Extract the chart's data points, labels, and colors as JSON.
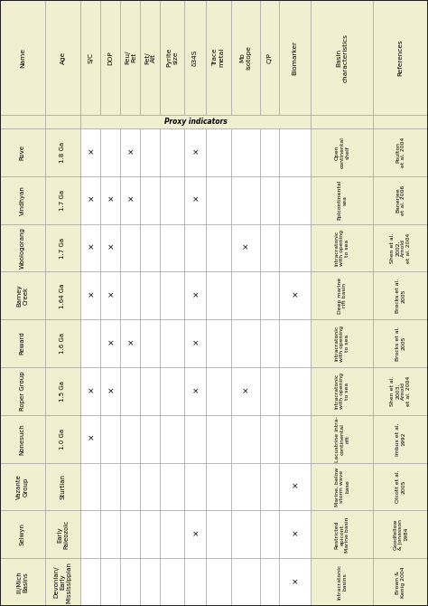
{
  "rows_data": [
    {
      "name": "Rove",
      "age": "1.8 Ga",
      "sc": true,
      "dop": false,
      "feu": true,
      "fet": false,
      "pyrite": false,
      "s34": true,
      "trace": false,
      "mo": false,
      "cp": false,
      "bio": false,
      "basin": "Open\ncontinental\nshelf",
      "ref": "Poulton\net al. 2004"
    },
    {
      "name": "Vindhyan",
      "age": "1.7 Ga",
      "sc": true,
      "dop": true,
      "feu": true,
      "fet": false,
      "pyrite": false,
      "s34": true,
      "trace": false,
      "mo": false,
      "cp": false,
      "bio": false,
      "basin": "Epicontinental\nsea",
      "ref": "Banerjee\net al. 2006"
    },
    {
      "name": "Woologorang",
      "age": "1.7 Ga",
      "sc": true,
      "dop": true,
      "feu": false,
      "fet": false,
      "pyrite": false,
      "s34": false,
      "trace": false,
      "mo": true,
      "cp": false,
      "bio": false,
      "basin": "Intracratonic\nwith opening\nto sea",
      "ref": "Shen et al.\n2002,\nArnold\net al. 2004"
    },
    {
      "name": "Barney\nCreek",
      "age": "1.64 Ga",
      "sc": true,
      "dop": true,
      "feu": false,
      "fet": false,
      "pyrite": false,
      "s34": true,
      "trace": false,
      "mo": false,
      "cp": false,
      "bio": true,
      "basin": "Deep marine\nrift basin",
      "ref": "Brocks et al.\n2005"
    },
    {
      "name": "Reward",
      "age": "1.6 Ga",
      "sc": false,
      "dop": true,
      "feu": true,
      "fet": false,
      "pyrite": false,
      "s34": true,
      "trace": false,
      "mo": false,
      "cp": false,
      "bio": false,
      "basin": "Intracratonic\nwith opening\nto sea",
      "ref": "Brocks et al.\n2005"
    },
    {
      "name": "Roper Group",
      "age": "1.5 Ga",
      "sc": true,
      "dop": true,
      "feu": false,
      "fet": false,
      "pyrite": false,
      "s34": true,
      "trace": false,
      "mo": true,
      "cp": false,
      "bio": false,
      "basin": "Intracratonic\nwith opening\nto sea",
      "ref": "Shen et al.\n2003,\nArnold\net al. 2004"
    },
    {
      "name": "Nonesuch",
      "age": "1.0 Ga",
      "sc": true,
      "dop": false,
      "feu": false,
      "fet": false,
      "pyrite": false,
      "s34": false,
      "trace": false,
      "mo": false,
      "cp": false,
      "bio": false,
      "basin": "Lacustrine intra-\ncontinental\nrift",
      "ref": "Imbus et al.\n1992"
    },
    {
      "name": "Vazante\nGroup",
      "age": "Sturtian",
      "sc": false,
      "dop": false,
      "feu": false,
      "fet": false,
      "pyrite": false,
      "s34": false,
      "trace": false,
      "mo": false,
      "cp": false,
      "bio": true,
      "basin": "Marine, below\nstorm wave\nbase",
      "ref": "Olcott et al.\n2005"
    },
    {
      "name": "Selwyn",
      "age": "Early\nPaleozoic",
      "sc": false,
      "dop": false,
      "feu": false,
      "fet": false,
      "pyrite": false,
      "s34": true,
      "trace": false,
      "mo": false,
      "cp": false,
      "bio": true,
      "basin": "Restricted\nepicont.\nMarine basin",
      "ref": "Goodfellow\n& Jonasson\n1984"
    },
    {
      "name": "Ill/Mich\nBasins",
      "age": "Devonian/\nEarly\nMississippian",
      "sc": false,
      "dop": false,
      "feu": false,
      "fet": false,
      "pyrite": false,
      "s34": false,
      "trace": false,
      "mo": false,
      "cp": false,
      "bio": true,
      "basin": "Intracratonic\nbasins",
      "ref": "Brown &\nKenig 2004"
    }
  ],
  "header_bg": "#F0EFD0",
  "proxy_bg": "#F0EFD0",
  "white_bg": "#FFFFFF",
  "grid_color": "#999999",
  "marker": "×",
  "proxy_label": "Proxy indicators",
  "col_header_name": "Name",
  "col_header_age": "Age",
  "col_header_sc": "S/C",
  "col_header_dop": "DOP",
  "col_header_feu": "Feu/\nFet",
  "col_header_fet": "Fet/\nAlt",
  "col_header_pyrite": "Pyrite\nsize",
  "col_header_s34": "δ34S",
  "col_header_trace": "Trace\nmetal",
  "col_header_mo": "Mo\nisotope",
  "col_header_cp": "C/P",
  "col_header_bio": "Biomarker",
  "col_header_basin": "Basin\ncharacteristics",
  "col_header_ref": "References"
}
